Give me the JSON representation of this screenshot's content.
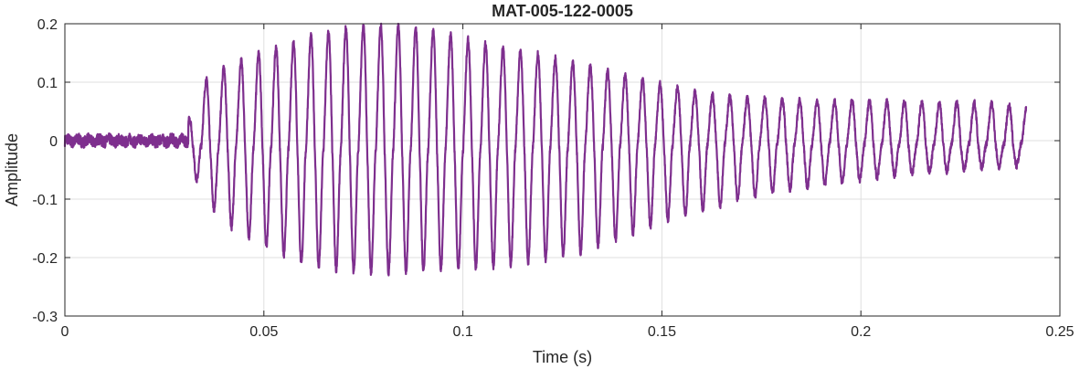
{
  "chart_data": {
    "type": "line",
    "title": "MAT-005-122-0005",
    "xlabel": "Time (s)",
    "ylabel": "Amplitude",
    "xlim": [
      0,
      0.25
    ],
    "ylim": [
      -0.3,
      0.2
    ],
    "x_ticks": [
      0,
      0.05,
      0.1,
      0.15,
      0.2,
      0.25
    ],
    "x_tick_labels": [
      "0",
      "0.05",
      "0.1",
      "0.15",
      "0.2",
      "0.25"
    ],
    "y_ticks": [
      -0.3,
      -0.2,
      -0.1,
      0,
      0.1,
      0.2
    ],
    "y_tick_labels": [
      "-0.3",
      "-0.2",
      "-0.1",
      "0",
      "0.1",
      "0.2"
    ],
    "grid": true,
    "line_color": "#7e2f8e",
    "series": [
      {
        "duration": 0.2415,
        "onset": 0.031,
        "cycle_count": 48,
        "noise_amplitude_pre_onset": 0.012,
        "envelope_positive": [
          [
            0.031,
            0.03
          ],
          [
            0.035,
            0.09
          ],
          [
            0.04,
            0.11
          ],
          [
            0.05,
            0.135
          ],
          [
            0.06,
            0.155
          ],
          [
            0.07,
            0.17
          ],
          [
            0.08,
            0.175
          ],
          [
            0.09,
            0.17
          ],
          [
            0.1,
            0.155
          ],
          [
            0.11,
            0.14
          ],
          [
            0.12,
            0.13
          ],
          [
            0.13,
            0.115
          ],
          [
            0.14,
            0.1
          ],
          [
            0.15,
            0.085
          ],
          [
            0.16,
            0.07
          ],
          [
            0.17,
            0.065
          ],
          [
            0.18,
            0.062
          ],
          [
            0.19,
            0.06
          ],
          [
            0.2,
            0.06
          ],
          [
            0.21,
            0.058
          ],
          [
            0.22,
            0.057
          ],
          [
            0.23,
            0.057
          ],
          [
            0.2415,
            0.05
          ]
        ],
        "envelope_negative": [
          [
            0.031,
            -0.04
          ],
          [
            0.035,
            -0.1
          ],
          [
            0.04,
            -0.15
          ],
          [
            0.05,
            -0.19
          ],
          [
            0.06,
            -0.225
          ],
          [
            0.07,
            -0.235
          ],
          [
            0.08,
            -0.24
          ],
          [
            0.09,
            -0.235
          ],
          [
            0.1,
            -0.23
          ],
          [
            0.11,
            -0.225
          ],
          [
            0.12,
            -0.215
          ],
          [
            0.13,
            -0.2
          ],
          [
            0.14,
            -0.175
          ],
          [
            0.15,
            -0.145
          ],
          [
            0.16,
            -0.125
          ],
          [
            0.17,
            -0.105
          ],
          [
            0.18,
            -0.09
          ],
          [
            0.19,
            -0.08
          ],
          [
            0.2,
            -0.07
          ],
          [
            0.21,
            -0.062
          ],
          [
            0.22,
            -0.057
          ],
          [
            0.23,
            -0.05
          ],
          [
            0.2415,
            -0.045
          ]
        ]
      }
    ]
  }
}
